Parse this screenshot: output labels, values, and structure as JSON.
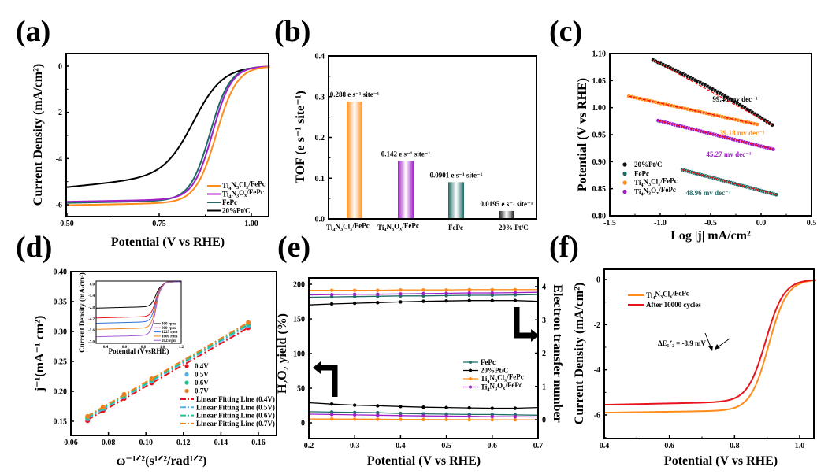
{
  "figure": {
    "panels": [
      "(a)",
      "(b)",
      "(c)",
      "(d)",
      "(e)",
      "(f)"
    ]
  },
  "chart_data": [
    {
      "id": "a",
      "type": "line",
      "panel_label": "(a)",
      "xlabel": "Potential (V vs RHE)",
      "ylabel": "Current Density (mA/cm²)",
      "xlim": [
        0.5,
        1.05
      ],
      "ylim": [
        -6.5,
        0.5
      ],
      "xticks": [
        0.5,
        0.75,
        1.0
      ],
      "xtick_labels": [
        "0.50",
        "0.75",
        "1.00"
      ],
      "yticks": [
        0,
        -2,
        -4,
        -6
      ],
      "ytick_labels": [
        "0",
        "-2",
        "-4",
        "-6"
      ],
      "legend_position": "bottom-right",
      "series": [
        {
          "name": "Ti4N3Clx/FePc",
          "label_parts": [
            "Ti",
            "4",
            "N",
            "3",
            "Cl",
            "x",
            "/FePc"
          ],
          "color": "#FF8C1A",
          "limiting": -6.05,
          "e_half": 0.905,
          "width": 0.028
        },
        {
          "name": "Ti4N3Ox/FePc",
          "label_parts": [
            "Ti",
            "4",
            "N",
            "3",
            "O",
            "x",
            "/FePc"
          ],
          "color": "#A020C8",
          "limiting": -5.9,
          "e_half": 0.895,
          "width": 0.026
        },
        {
          "name": "FePc",
          "label_parts": [
            "FePc"
          ],
          "color": "#1E6B66",
          "limiting": -5.95,
          "e_half": 0.888,
          "width": 0.027
        },
        {
          "name": "20%Pt/C",
          "label_parts": [
            "20%Pt/C"
          ],
          "color": "#000000",
          "limiting": -5.4,
          "e_half": 0.845,
          "width": 0.04
        }
      ]
    },
    {
      "id": "b",
      "type": "bar",
      "panel_label": "(b)",
      "ylabel": "TOF (e s⁻¹ site⁻¹)",
      "ylim": [
        0,
        0.4
      ],
      "yticks": [
        0.0,
        0.1,
        0.2,
        0.3,
        0.4
      ],
      "ytick_labels": [
        "0.0",
        "0.1",
        "0.2",
        "0.3",
        "0.4"
      ],
      "categories": [
        "Ti4N3Clx/FePc",
        "Ti4N3Ox/FePc",
        "FePc",
        "20% Pt/C"
      ],
      "category_parts": [
        [
          "Ti",
          "4",
          "N",
          "3",
          "Cl",
          "x",
          "/FePc"
        ],
        [
          "Ti",
          "4",
          "N",
          "3",
          "O",
          "x",
          "/FePc"
        ],
        [
          "FePc"
        ],
        [
          "20% Pt/C"
        ]
      ],
      "values": [
        0.288,
        0.142,
        0.0901,
        0.0195
      ],
      "data_labels": [
        "0.288",
        "0.142",
        "0.0901",
        "0.0195"
      ],
      "data_label_unit": " e s⁻¹ site⁻¹",
      "colors": [
        "#FF8C1A",
        "#A020C8",
        "#1E6B66",
        "#111111"
      ]
    },
    {
      "id": "c",
      "type": "scatter",
      "panel_label": "(c)",
      "xlabel": "Log |j| mA/cm²",
      "ylabel": "Potential (V vs RHE)",
      "xlim": [
        -1.5,
        0.5
      ],
      "ylim": [
        0.8,
        1.1
      ],
      "xticks": [
        -1.5,
        -1.0,
        -0.5,
        0.0,
        0.5
      ],
      "xtick_labels": [
        "-1.5",
        "-1.0",
        "-0.5",
        "0.0",
        "0.5"
      ],
      "yticks": [
        0.8,
        0.85,
        0.9,
        0.95,
        1.0,
        1.05,
        1.1
      ],
      "ytick_labels": [
        "0.80",
        "0.85",
        "0.90",
        "0.95",
        "1.00",
        "1.05",
        "1.10"
      ],
      "legend_position": "bottom-left",
      "fit_color": "#FF0000",
      "series": [
        {
          "name": "20%Pt/C",
          "label_parts": [
            "20%Pt/C"
          ],
          "color": "#111111",
          "x_range": [
            -1.07,
            0.11
          ],
          "y_range": [
            1.088,
            0.968
          ],
          "tafel": "99.48 mv dec⁻¹"
        },
        {
          "name": "FePc",
          "label_parts": [
            "FePc"
          ],
          "color": "#1E6B66",
          "x_range": [
            -0.78,
            0.15
          ],
          "y_range": [
            0.885,
            0.839
          ],
          "tafel": "48.96 mv dec⁻¹"
        },
        {
          "name": "Ti4N3Clx/FePc",
          "label_parts": [
            "Ti",
            "4",
            "N",
            "3",
            "Cl",
            "x",
            "/FePc"
          ],
          "color": "#FF8C1A",
          "x_range": [
            -1.31,
            -0.04
          ],
          "y_range": [
            1.021,
            0.969
          ],
          "tafel": "39.18 mv dec⁻¹"
        },
        {
          "name": "Ti4N3Ox/FePc",
          "label_parts": [
            "Ti",
            "4",
            "N",
            "3",
            "O",
            "x",
            "/FePc"
          ],
          "color": "#A020C8",
          "x_range": [
            -1.02,
            0.12
          ],
          "y_range": [
            0.976,
            0.923
          ],
          "tafel": "45.27 mv dec⁻¹"
        }
      ]
    },
    {
      "id": "d",
      "type": "scatter",
      "panel_label": "(d)",
      "xlabel": "ω⁻¹ᐟ²(s¹ᐟ²/rad¹ᐟ²)",
      "ylabel": "j⁻¹(mA⁻¹ cm²)",
      "xlim": [
        0.06,
        0.17
      ],
      "ylim": [
        0.125,
        0.4
      ],
      "xticks": [
        0.06,
        0.08,
        0.1,
        0.12,
        0.14,
        0.16
      ],
      "xtick_labels": [
        "0.06",
        "0.08",
        "0.10",
        "0.12",
        "0.14",
        "0.16"
      ],
      "yticks": [
        0.15,
        0.2,
        0.25,
        0.3,
        0.35,
        0.4
      ],
      "ytick_labels": [
        "0.15",
        "0.20",
        "0.25",
        "0.30",
        "0.35",
        "0.40"
      ],
      "x": [
        0.0689,
        0.0772,
        0.0884,
        0.1031,
        0.1546
      ],
      "legend_position": "bottom-right",
      "series": [
        {
          "name": "0.4V",
          "color": "#E8141C",
          "y": [
            0.151,
            0.168,
            0.188,
            0.214,
            0.306
          ],
          "fit_label": "Linear Fitting Line (0.4V)"
        },
        {
          "name": "0.5V",
          "color": "#4FB3F0",
          "y": [
            0.154,
            0.171,
            0.191,
            0.217,
            0.31
          ],
          "fit_label": "Linear Fitting Line (0.5V)"
        },
        {
          "name": "0.6V",
          "color": "#1DC88C",
          "y": [
            0.156,
            0.172,
            0.193,
            0.219,
            0.312
          ],
          "fit_label": "Linear Fitting Line (0.6V)"
        },
        {
          "name": "0.7V",
          "color": "#F0821E",
          "y": [
            0.158,
            0.174,
            0.195,
            0.221,
            0.315
          ],
          "fit_label": "Linear Fitting Line (0.7V)"
        }
      ],
      "inset": {
        "type": "line",
        "xlabel": "Potential (VvsRHE)",
        "ylabel": "Current Density (mA/cm²)",
        "xlim": [
          0.3,
          1.2
        ],
        "ylim": [
          -7.2,
          0.4
        ],
        "xticks": [
          0.4,
          0.6,
          0.8,
          1.0,
          1.2
        ],
        "xtick_labels": [
          "0.4",
          "0.6",
          "0.8",
          "1.0",
          "1.2"
        ],
        "yticks": [
          0.0,
          -1.4,
          -2.8,
          -4.2,
          -5.6,
          -7.0
        ],
        "ytick_labels": [
          "0.0",
          "-1.4",
          "-2.8",
          "-4.2",
          "-5.6",
          "-7.0"
        ],
        "series": [
          {
            "name": "400 rpm",
            "color": "#000000",
            "limiting": -2.9
          },
          {
            "name": "900 rpm",
            "color": "#E8141C",
            "limiting": -4.1
          },
          {
            "name": "1225 rpm",
            "color": "#2F6FD6",
            "limiting": -4.75
          },
          {
            "name": "1600 rpm",
            "color": "#F0821E",
            "limiting": -5.5
          },
          {
            "name": "2025rpm",
            "color": "#A55FD6",
            "limiting": -6.4
          }
        ]
      }
    },
    {
      "id": "e",
      "type": "line",
      "panel_label": "(e)",
      "xlabel": "Potential (V vs RHE)",
      "ylabel_left": "H₂O₂ yield (%)",
      "ylabel_right": "Electron transfer number",
      "xlim": [
        0.2,
        0.7
      ],
      "ylim_left": [
        -20,
        220
      ],
      "ylim_right": [
        -0.5,
        4.4
      ],
      "xticks": [
        0.2,
        0.3,
        0.4,
        0.5,
        0.6,
        0.7
      ],
      "xtick_labels": [
        "0.2",
        "0.3",
        "0.4",
        "0.5",
        "0.6",
        "0.7"
      ],
      "yticks_left": [
        0,
        50,
        100,
        150,
        200
      ],
      "yticks_right": [
        0,
        1,
        2,
        3,
        4
      ],
      "x": [
        0.2,
        0.25,
        0.3,
        0.35,
        0.4,
        0.45,
        0.5,
        0.55,
        0.6,
        0.65,
        0.7
      ],
      "legend_position": "center-right",
      "series": [
        {
          "name": "FePc",
          "label_parts": [
            "FePc"
          ],
          "color": "#1E6B66",
          "n": [
            3.68,
            3.69,
            3.7,
            3.71,
            3.72,
            3.72,
            3.73,
            3.74,
            3.74,
            3.75,
            3.76
          ],
          "h2o2": [
            16,
            15.5,
            15,
            14.5,
            13.5,
            13,
            12.5,
            12,
            12,
            11.5,
            11
          ]
        },
        {
          "name": "20%Pt/C",
          "label_parts": [
            "20%Pt/C"
          ],
          "color": "#000000",
          "n": [
            3.45,
            3.48,
            3.5,
            3.52,
            3.54,
            3.56,
            3.57,
            3.58,
            3.58,
            3.58,
            3.56
          ],
          "h2o2": [
            29,
            27,
            25.5,
            24.5,
            23.5,
            22.5,
            22,
            21.5,
            21,
            21,
            22
          ]
        },
        {
          "name": "Ti4N3Clx/FePc",
          "label_parts": [
            "Ti",
            "4",
            "N",
            "3",
            "Cl",
            "x",
            "/FePc"
          ],
          "color": "#FF8C1A",
          "n": [
            3.89,
            3.89,
            3.89,
            3.89,
            3.9,
            3.9,
            3.9,
            3.91,
            3.91,
            3.91,
            3.91
          ],
          "h2o2": [
            5.5,
            5.5,
            5.3,
            5.2,
            5,
            4.8,
            4.7,
            4.5,
            4.4,
            4.3,
            4.2
          ]
        },
        {
          "name": "Ti4N3Ox/FePc",
          "label_parts": [
            "Ti",
            "4",
            "N",
            "3",
            "O",
            "x",
            "/FePc"
          ],
          "color": "#A020C8",
          "n": [
            3.75,
            3.76,
            3.77,
            3.77,
            3.78,
            3.79,
            3.8,
            3.81,
            3.81,
            3.82,
            3.83
          ],
          "h2o2": [
            12.5,
            12,
            11.5,
            11,
            10.5,
            10,
            9.8,
            9.5,
            9,
            8.8,
            8.5
          ]
        }
      ]
    },
    {
      "id": "f",
      "type": "line",
      "panel_label": "(f)",
      "xlabel": "Potential (V vs RHE)",
      "ylabel": "Current Density (mA/cm²)",
      "xlim": [
        0.4,
        1.05
      ],
      "ylim": [
        -7,
        0.5
      ],
      "xticks": [
        0.4,
        0.6,
        0.8,
        1.0
      ],
      "xtick_labels": [
        "0.4",
        "0.6",
        "0.8",
        "1.0"
      ],
      "yticks": [
        0,
        -2,
        -4,
        -6
      ],
      "ytick_labels": [
        "0",
        "-2",
        "-4",
        "-6"
      ],
      "legend_position": "top-left",
      "annotation": "ΔE₁ᐟ₂ = -8.9 mV",
      "series": [
        {
          "name": "Ti4N3Clx/FePc",
          "label_parts": [
            "Ti",
            "4",
            "N",
            "3",
            "Cl",
            "x",
            "/FePc"
          ],
          "color": "#FF8C1A",
          "limiting": -5.9,
          "plateau_slope": 0.35,
          "e_half": 0.905,
          "width": 0.028
        },
        {
          "name": "After 10000 cycles",
          "label_parts": [
            "After 10000 cycles"
          ],
          "color": "#E8141C",
          "limiting": -5.55,
          "plateau_slope": 0.5,
          "e_half": 0.896,
          "width": 0.028
        }
      ]
    }
  ]
}
